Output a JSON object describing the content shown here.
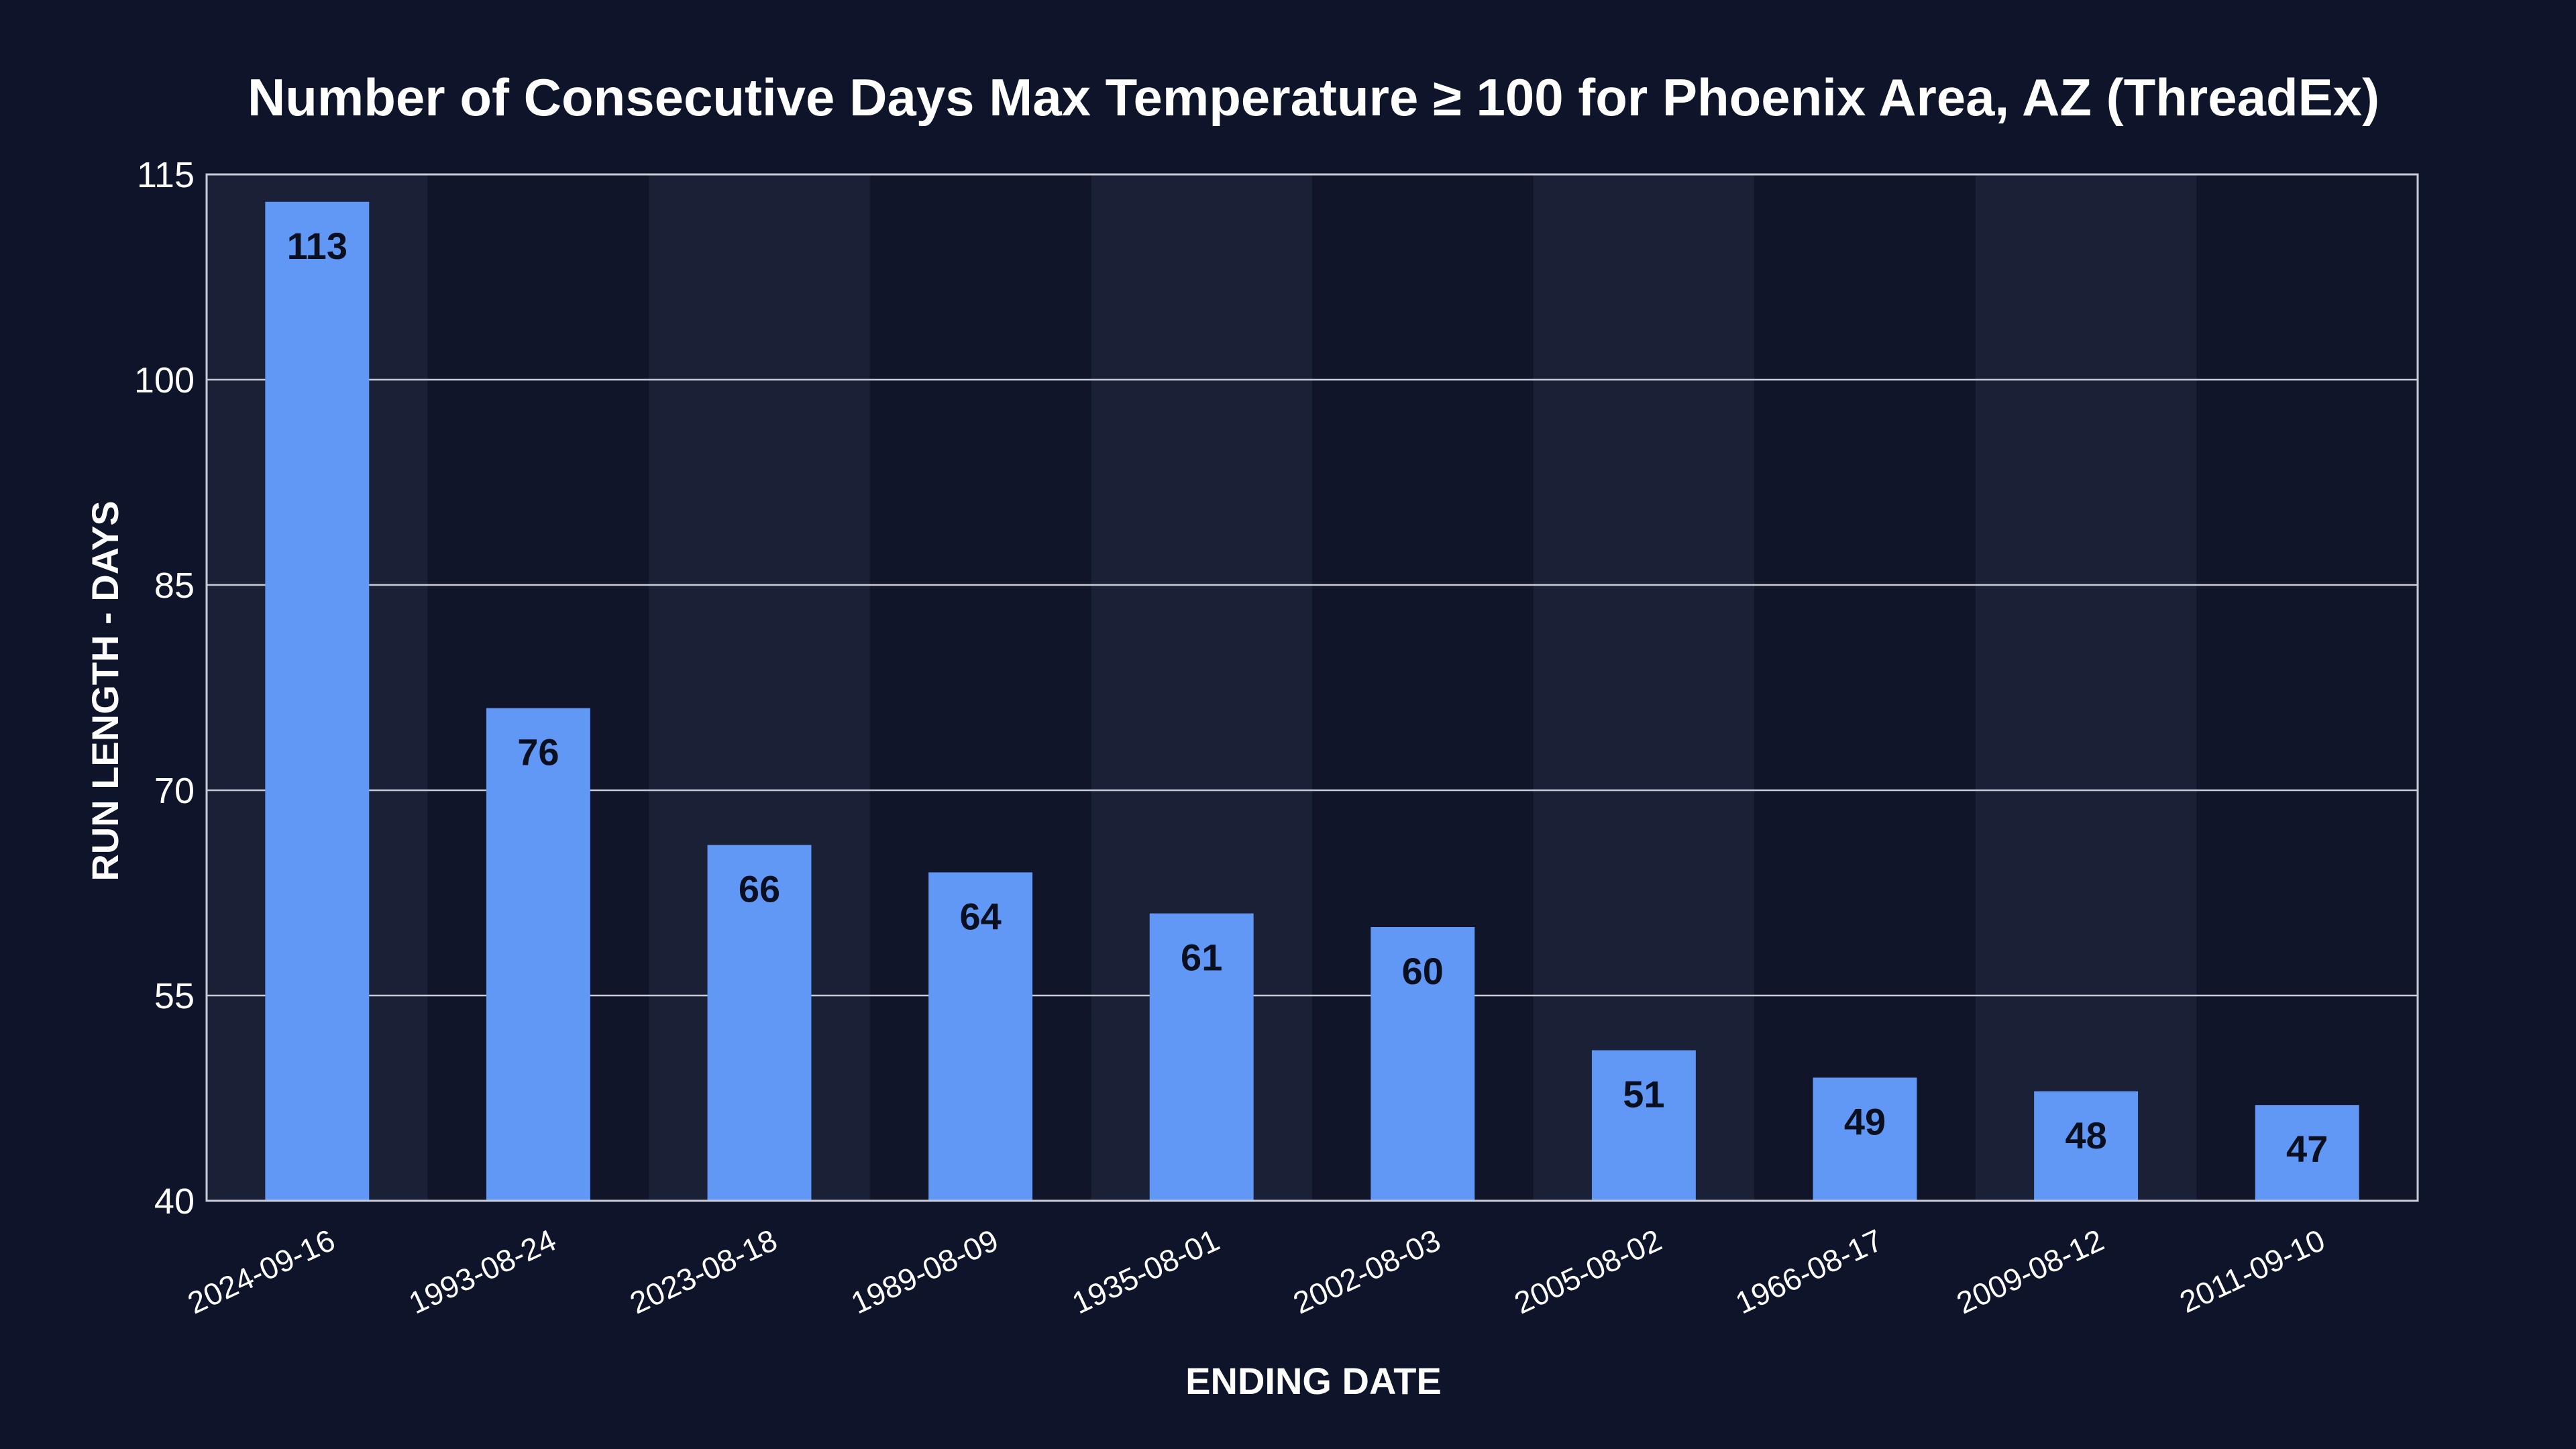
{
  "chart_data": {
    "type": "bar",
    "title": "Number of Consecutive Days Max Temperature ≥ 100 for Phoenix Area, AZ (ThreadEx)",
    "xlabel": "ENDING DATE",
    "ylabel": "RUN LENGTH - DAYS",
    "categories": [
      "2024-09-16",
      "1993-08-24",
      "2023-08-18",
      "1989-08-09",
      "1935-08-01",
      "2002-08-03",
      "2005-08-02",
      "1966-08-17",
      "2009-08-12",
      "2011-09-10"
    ],
    "values": [
      113,
      76,
      66,
      64,
      61,
      60,
      51,
      49,
      48,
      47
    ],
    "ylim": [
      40,
      115
    ],
    "yticks": [
      40,
      55,
      70,
      85,
      100,
      115
    ],
    "grid": true,
    "legend": "none",
    "colors": {
      "background": "#0e1429",
      "bar": "#6198f5",
      "band_light": "#1a2036",
      "band_dark": "#10152a",
      "grid": "#c9ccd6",
      "text": "#ffffff",
      "data_label": "#0b1020"
    }
  }
}
